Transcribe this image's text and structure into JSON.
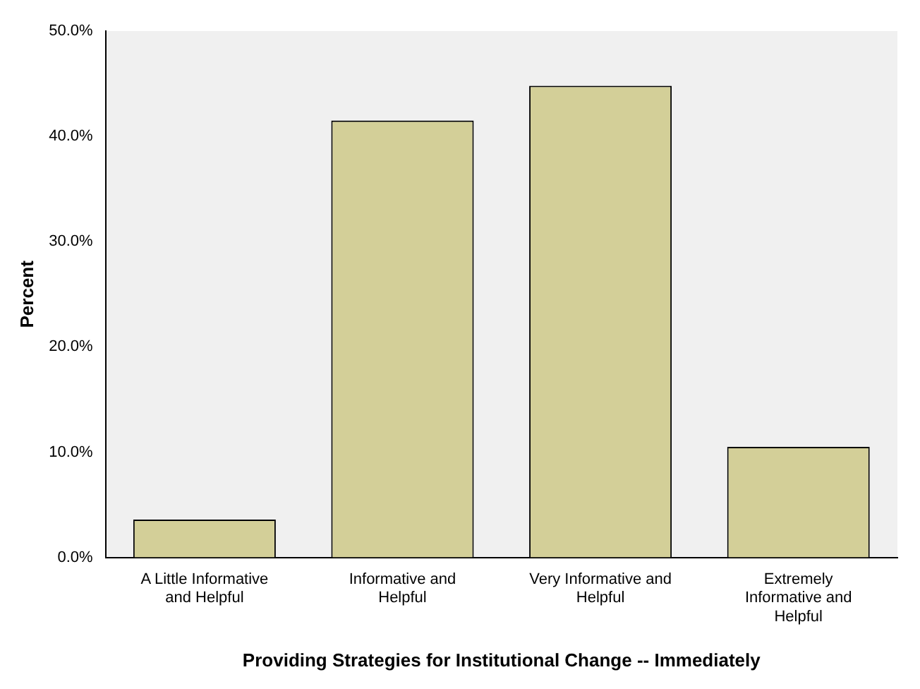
{
  "chart_data": {
    "type": "bar",
    "xlabel": "Providing Strategies for Institutional Change -- Immediately",
    "ylabel": "Percent",
    "categories": [
      "A Little Informative and Helpful",
      "Informative and Helpful",
      "Very Informative and Helpful",
      "Extremely Informative and Helpful"
    ],
    "values": [
      3.6,
      41.5,
      44.8,
      10.5
    ],
    "color": "#d3cf98",
    "ylim": [
      0,
      50
    ],
    "yticks": [
      {
        "value": 0,
        "label": "0.0%"
      },
      {
        "value": 10,
        "label": "10.0%"
      },
      {
        "value": 20,
        "label": "20.0%"
      },
      {
        "value": 30,
        "label": "30.0%"
      },
      {
        "value": 40,
        "label": "40.0%"
      },
      {
        "value": 50,
        "label": "50.0%"
      }
    ],
    "grid": false,
    "legend": false
  }
}
